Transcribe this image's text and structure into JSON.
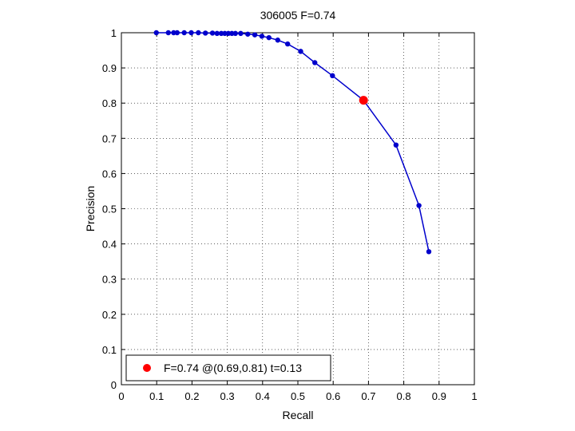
{
  "chart_data": {
    "type": "line",
    "title": "306005 F=0.74",
    "xlabel": "Recall",
    "ylabel": "Precision",
    "xlim": [
      0,
      1
    ],
    "ylim": [
      0,
      1
    ],
    "xticks": [
      0,
      0.1,
      0.2,
      0.3,
      0.4,
      0.5,
      0.6,
      0.7,
      0.8,
      0.9,
      1
    ],
    "yticks": [
      0,
      0.1,
      0.2,
      0.3,
      0.4,
      0.5,
      0.6,
      0.7,
      0.8,
      0.9,
      1
    ],
    "xtick_labels": [
      "0",
      "0.1",
      "0.2",
      "0.3",
      "0.4",
      "0.5",
      "0.6",
      "0.7",
      "0.8",
      "0.9",
      "1"
    ],
    "ytick_labels": [
      "0",
      "0.1",
      "0.2",
      "0.3",
      "0.4",
      "0.5",
      "0.6",
      "0.7",
      "0.8",
      "0.9",
      "1"
    ],
    "grid": true,
    "legend_position": "bottom-left",
    "series": [
      {
        "color": "#0000cc",
        "x": [
          0.099,
          0.133,
          0.148,
          0.158,
          0.178,
          0.198,
          0.218,
          0.238,
          0.258,
          0.271,
          0.283,
          0.293,
          0.303,
          0.313,
          0.323,
          0.338,
          0.358,
          0.378,
          0.398,
          0.418,
          0.443,
          0.471,
          0.508,
          0.548,
          0.598,
          0.686,
          0.778,
          0.843,
          0.871
        ],
        "y": [
          1.0,
          1.0,
          1.0,
          1.0,
          1.0,
          1.0,
          1.0,
          0.999,
          0.999,
          0.998,
          0.998,
          0.998,
          0.998,
          0.998,
          0.998,
          0.998,
          0.996,
          0.994,
          0.99,
          0.986,
          0.979,
          0.968,
          0.947,
          0.915,
          0.878,
          0.808,
          0.681,
          0.509,
          0.378
        ]
      }
    ],
    "highlight": {
      "x": 0.686,
      "y": 0.808,
      "color": "#ff0000",
      "legend": "F=0.74 @(0.69,0.81) t=0.13"
    }
  }
}
